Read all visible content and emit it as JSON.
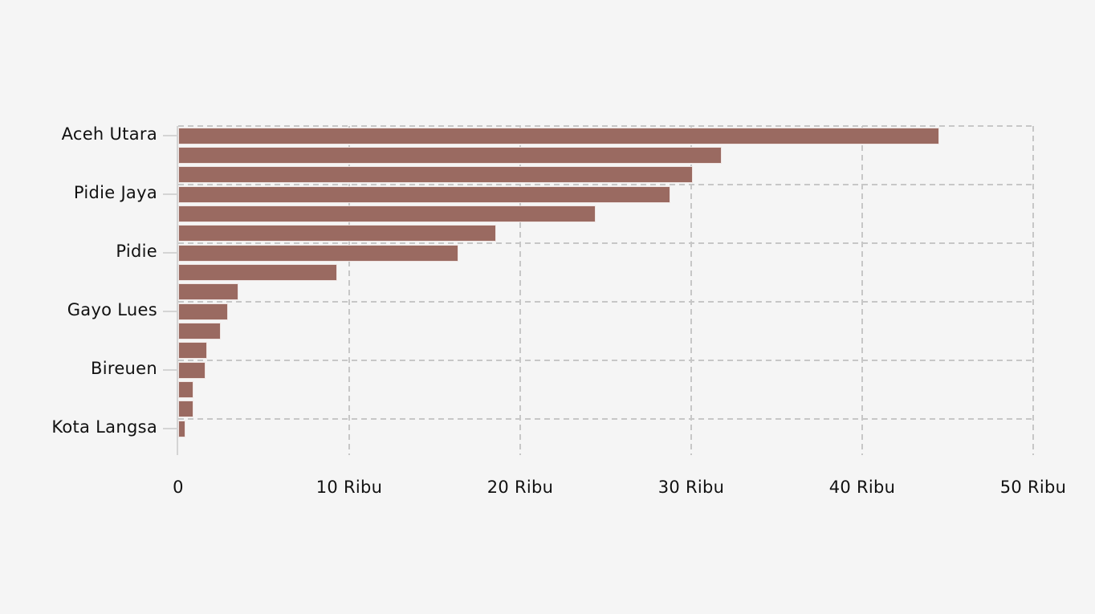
{
  "page": {
    "background_color": "#f5f5f5"
  },
  "chart_data": {
    "type": "bar",
    "orientation": "horizontal",
    "title": "",
    "xlabel": "",
    "ylabel": "",
    "unit": "Ribu",
    "xlim": [
      0,
      50
    ],
    "grid": "dashed, vertical at every 10 Ribu, horizontal at each labeled category",
    "legend_position": "none",
    "x_ticks": [
      {
        "value": 0,
        "label": "0"
      },
      {
        "value": 10,
        "label": "10 Ribu"
      },
      {
        "value": 20,
        "label": "20 Ribu"
      },
      {
        "value": 30,
        "label": "30 Ribu"
      },
      {
        "value": 40,
        "label": "40 Ribu"
      },
      {
        "value": 50,
        "label": "50 Ribu"
      }
    ],
    "y_axis_labeled_every_n_bars": 3,
    "bars": [
      {
        "label": "Aceh Utara",
        "value": 44.5
      },
      {
        "label": "",
        "value": 31.8
      },
      {
        "label": "",
        "value": 30.1
      },
      {
        "label": "Pidie Jaya",
        "value": 28.8
      },
      {
        "label": "",
        "value": 24.4
      },
      {
        "label": "",
        "value": 18.6
      },
      {
        "label": "Pidie",
        "value": 16.4
      },
      {
        "label": "",
        "value": 9.3
      },
      {
        "label": "",
        "value": 3.5
      },
      {
        "label": "Gayo Lues",
        "value": 2.9
      },
      {
        "label": "",
        "value": 2.5
      },
      {
        "label": "",
        "value": 1.7
      },
      {
        "label": "Bireuen",
        "value": 1.6
      },
      {
        "label": "",
        "value": 0.9
      },
      {
        "label": "",
        "value": 0.9
      },
      {
        "label": "Kota Langsa",
        "value": 0.4
      }
    ],
    "colors": {
      "bar_fill": "#9a6a61",
      "bar_border": "#efe5e3",
      "gridline": "#c7c7c7",
      "axis_line": "#d4d4d4",
      "text": "#111111",
      "background": "#f5f5f5"
    }
  }
}
